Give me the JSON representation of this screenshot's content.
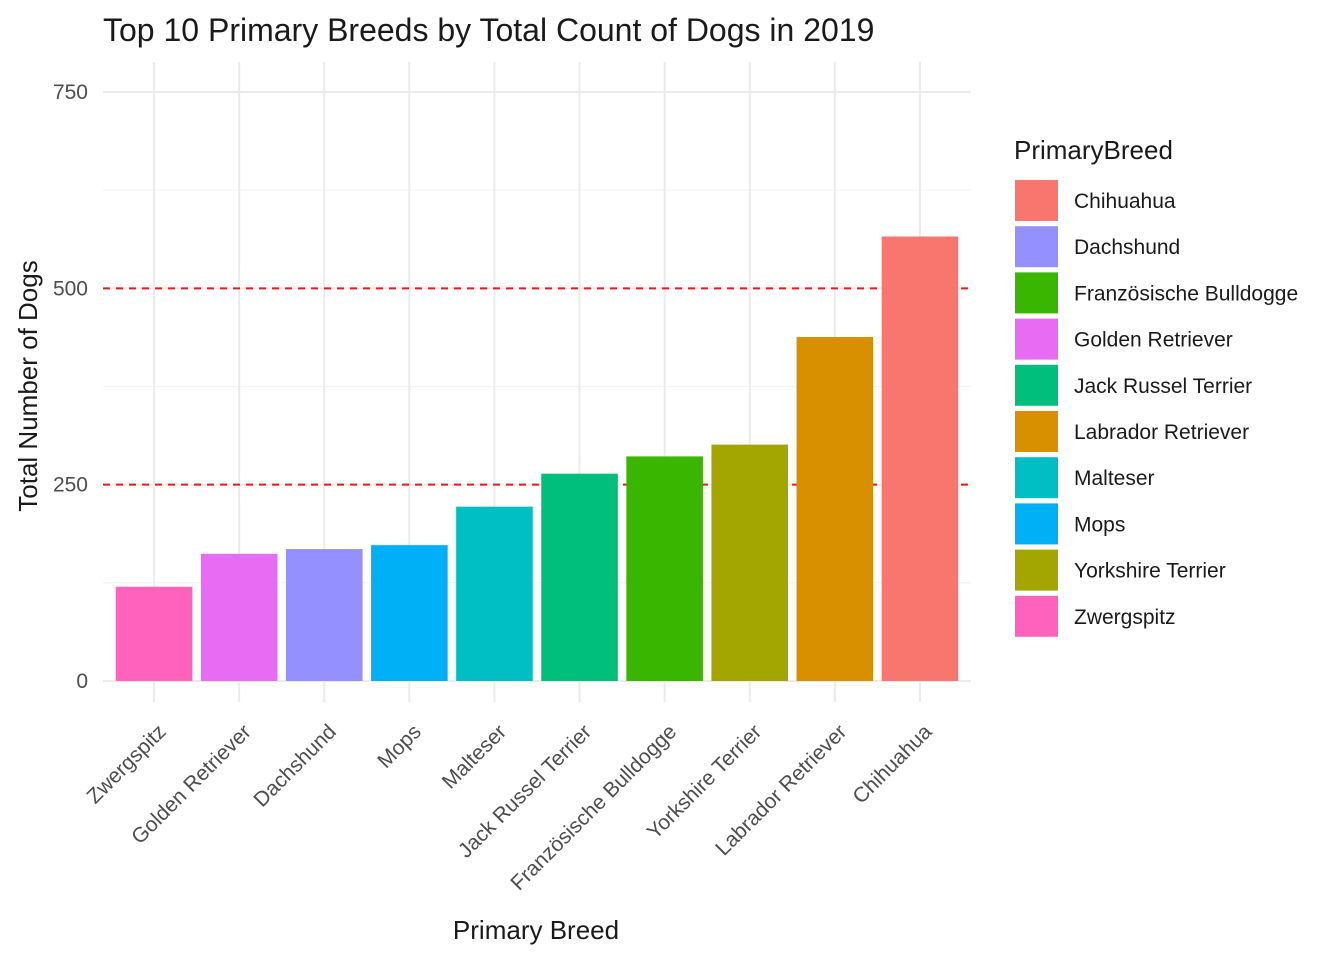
{
  "chart_data": {
    "type": "bar",
    "title": "Top 10 Primary Breeds by Total Count of Dogs in 2019",
    "xlabel": "Primary Breed",
    "ylabel": "Total Number of Dogs",
    "ylim": [
      0,
      760
    ],
    "yticks": [
      0,
      250,
      500,
      750
    ],
    "grid": true,
    "categories": [
      "Zwergspitz",
      "Golden Retriever",
      "Dachshund",
      "Mops",
      "Malteser",
      "Jack Russel Terrier",
      "Französische Bulldogge",
      "Yorkshire Terrier",
      "Labrador Retriever",
      "Chihuahua"
    ],
    "values": [
      120,
      162,
      168,
      173,
      222,
      264,
      286,
      301,
      438,
      566
    ],
    "reference_lines": [
      250,
      500
    ],
    "reference_line_color": "#E41A1C",
    "colors": {
      "Chihuahua": "#F8766D",
      "Dachshund": "#9590FF",
      "Französische Bulldogge": "#39B600",
      "Golden Retriever": "#E76BF3",
      "Jack Russel Terrier": "#00BF7D",
      "Labrador Retriever": "#D89000",
      "Malteser": "#00BFC4",
      "Mops": "#00B0F6",
      "Yorkshire Terrier": "#A3A500",
      "Zwergspitz": "#FF62BC"
    },
    "legend": {
      "title": "PrimaryBreed",
      "placement": "right",
      "entries": [
        "Chihuahua",
        "Dachshund",
        "Französische Bulldogge",
        "Golden Retriever",
        "Jack Russel Terrier",
        "Labrador Retriever",
        "Malteser",
        "Mops",
        "Yorkshire Terrier",
        "Zwergspitz"
      ]
    }
  }
}
